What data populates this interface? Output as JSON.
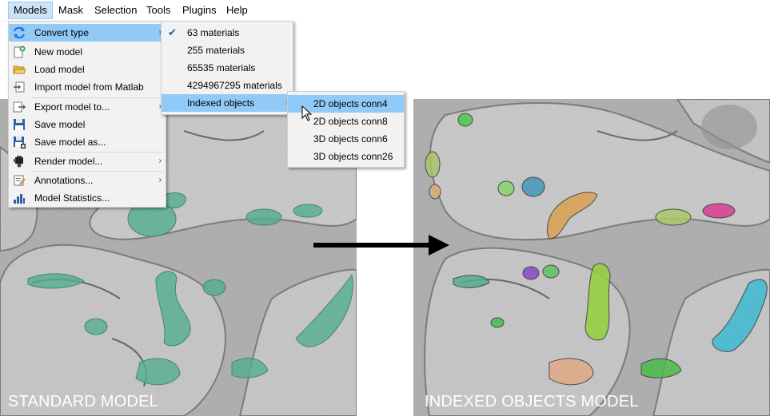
{
  "menubar": {
    "items": [
      {
        "label": "Models"
      },
      {
        "label": "Mask"
      },
      {
        "label": "Selection"
      },
      {
        "label": "Tools"
      },
      {
        "label": "Plugins"
      },
      {
        "label": "Help"
      }
    ]
  },
  "models_menu": {
    "items": [
      {
        "label": "Convert type",
        "icon": "convert-type-icon"
      },
      {
        "label": "New model",
        "icon": "new-model-icon"
      },
      {
        "label": "Load model",
        "icon": "open-folder-icon"
      },
      {
        "label": "Import model from Matlab",
        "icon": "import-icon"
      },
      {
        "label": "Export model to...",
        "icon": "export-icon"
      },
      {
        "label": "Save model",
        "icon": "save-icon"
      },
      {
        "label": "Save model as...",
        "icon": "save-as-icon"
      },
      {
        "label": "Render model...",
        "icon": "render-icon"
      },
      {
        "label": "Annotations...",
        "icon": "annotations-icon"
      },
      {
        "label": "Model Statistics...",
        "icon": "statistics-icon"
      }
    ]
  },
  "convert_submenu": {
    "items": [
      {
        "label": "63 materials",
        "checked": true
      },
      {
        "label": "255 materials"
      },
      {
        "label": "65535 materials"
      },
      {
        "label": "4294967295 materials"
      },
      {
        "label": "Indexed objects"
      }
    ]
  },
  "indexed_submenu": {
    "items": [
      {
        "label": "2D objects conn4"
      },
      {
        "label": "2D objects conn8"
      },
      {
        "label": "3D objects conn6"
      },
      {
        "label": "3D objects conn26"
      }
    ]
  },
  "panels": {
    "left_caption": "STANDARD MODEL",
    "right_caption": "INDEXED OBJECTS MODEL"
  },
  "colors": {
    "standard_model": "#3dab85",
    "indexed_objects": [
      "#33cc33",
      "#a8c45a",
      "#e0a96d",
      "#7ed957",
      "#2a8fb8",
      "#e09a3c",
      "#a5cc55",
      "#e0208a",
      "#7a30c8",
      "#49c24e",
      "#8bd420",
      "#22b9d6",
      "#e8a47a",
      "#33bb33"
    ],
    "highlight": "#91c9f7"
  }
}
